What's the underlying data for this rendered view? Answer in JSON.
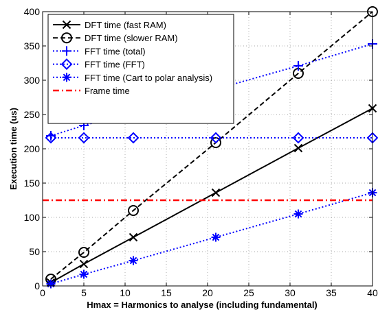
{
  "chart_data": {
    "type": "line",
    "title": "",
    "xlabel": "Hmax = Harmonics to analyse (including fundamental)",
    "ylabel": "Execution time (us)",
    "xlim": [
      0,
      40
    ],
    "ylim": [
      0,
      400
    ],
    "xticks": [
      0,
      5,
      10,
      15,
      20,
      25,
      30,
      35,
      40
    ],
    "yticks": [
      0,
      50,
      100,
      150,
      200,
      250,
      300,
      350,
      400
    ],
    "grid": true,
    "legend_position": "top-left",
    "series": [
      {
        "name": "DFT time (fast RAM)",
        "color": "#000000",
        "line": "solid",
        "marker": "x",
        "x": [
          1,
          5,
          11,
          21,
          31,
          40
        ],
        "y": [
          5,
          32,
          71,
          136,
          201,
          259
        ]
      },
      {
        "name": "DFT time (slower RAM)",
        "color": "#000000",
        "line": "dashed",
        "marker": "circle",
        "x": [
          1,
          5,
          11,
          21,
          31,
          40
        ],
        "y": [
          10,
          49,
          110,
          209,
          310,
          400
        ]
      },
      {
        "name": "FFT time (total)",
        "color": "#0000ff",
        "line": "dotted",
        "marker": "plus",
        "x": [
          1,
          5,
          11,
          21,
          31,
          40
        ],
        "y": [
          219,
          234,
          254,
          287,
          321,
          353
        ]
      },
      {
        "name": "FFT time (FFT)",
        "color": "#0000ff",
        "line": "dotted",
        "marker": "diamond",
        "x": [
          1,
          5,
          11,
          21,
          31,
          40
        ],
        "y": [
          216,
          216,
          216,
          216,
          216,
          216
        ]
      },
      {
        "name": "FFT time (Cart to polar analysis)",
        "color": "#0000ff",
        "line": "dotted",
        "marker": "asterisk",
        "x": [
          1,
          5,
          11,
          21,
          31,
          40
        ],
        "y": [
          3,
          17,
          37,
          71,
          105,
          136
        ]
      },
      {
        "name": "Frame time",
        "color": "#ff0000",
        "line": "dashdot",
        "marker": "none",
        "x": [
          0,
          40
        ],
        "y": [
          125,
          125
        ]
      }
    ]
  }
}
